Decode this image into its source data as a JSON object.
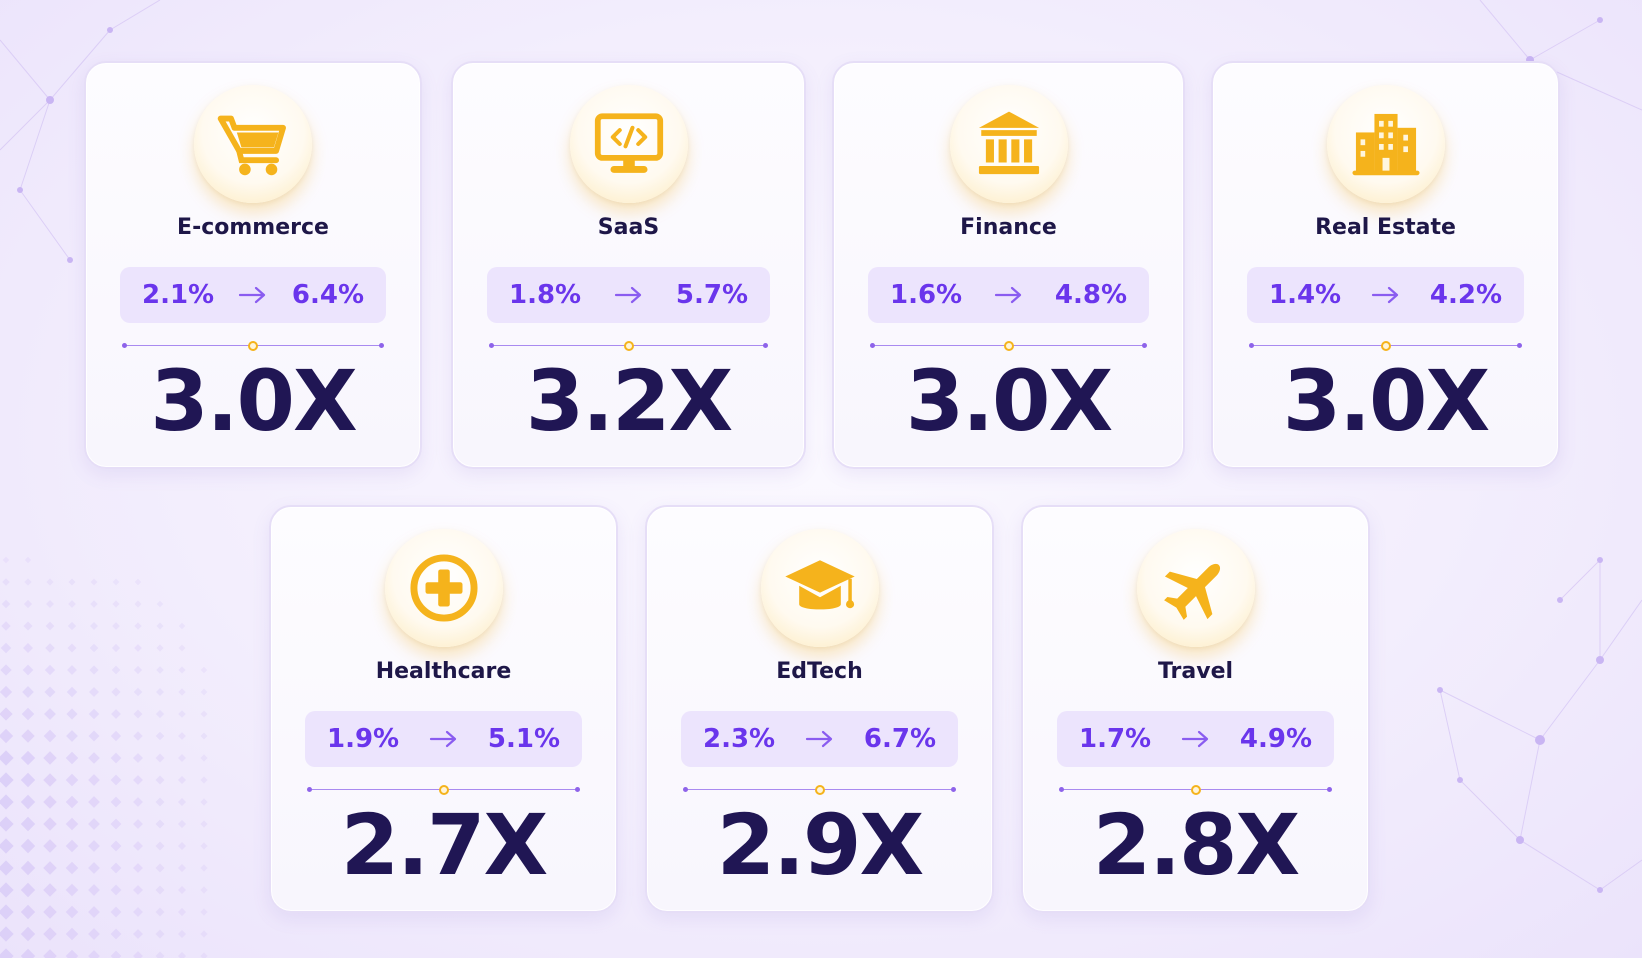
{
  "colors": {
    "accent_purple": "#6a35ec",
    "pill_background": "#ece4fd",
    "heading_navy": "#1e1748",
    "icon_gold": "#f5b31c"
  },
  "cards": [
    {
      "title": "E-commerce",
      "icon": "shopping-cart-icon",
      "from": "2.1%",
      "to": "6.4%",
      "multiplier": "3.0X"
    },
    {
      "title": "SaaS",
      "icon": "code-monitor-icon",
      "from": "1.8%",
      "to": "5.7%",
      "multiplier": "3.2X"
    },
    {
      "title": "Finance",
      "icon": "bank-icon",
      "from": "1.6%",
      "to": "4.8%",
      "multiplier": "3.0X"
    },
    {
      "title": "Real Estate",
      "icon": "buildings-icon",
      "from": "1.4%",
      "to": "4.2%",
      "multiplier": "3.0X"
    },
    {
      "title": "Healthcare",
      "icon": "medical-plus-icon",
      "from": "1.9%",
      "to": "5.1%",
      "multiplier": "2.7X"
    },
    {
      "title": "EdTech",
      "icon": "graduation-cap-icon",
      "from": "2.3%",
      "to": "6.7%",
      "multiplier": "2.9X"
    },
    {
      "title": "Travel",
      "icon": "airplane-icon",
      "from": "1.7%",
      "to": "4.9%",
      "multiplier": "2.8X"
    }
  ]
}
